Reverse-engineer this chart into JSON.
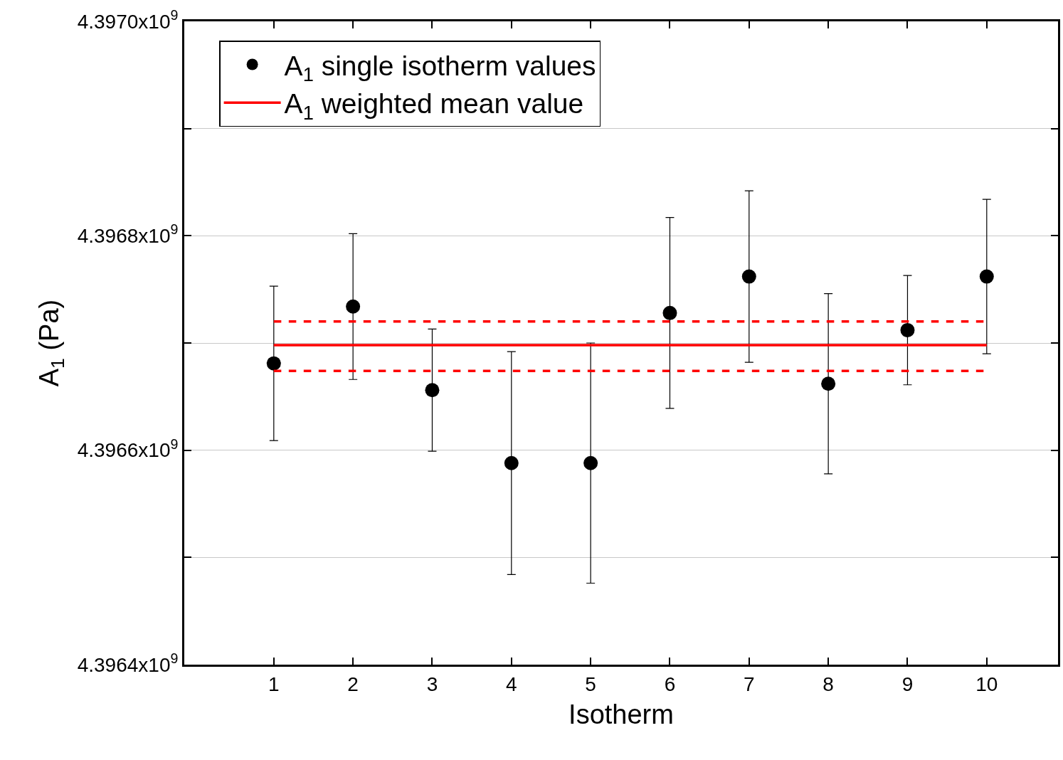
{
  "chart_data": {
    "type": "scatter",
    "xlabel": "Isotherm",
    "ylabel": "A$_{1}$ (Pa)",
    "x": [
      1,
      2,
      3,
      4,
      5,
      6,
      7,
      8,
      9,
      10
    ],
    "series": [
      {
        "name": "A$_{1}$ single isotherm values",
        "marker": "circle",
        "color": "#000000",
        "values": [
          4396681000,
          4396734000,
          4396656000,
          4396588000,
          4396588000,
          4396728000,
          4396762000,
          4396662000,
          4396712000,
          4396762000
        ],
        "errors": [
          72000,
          68000,
          57000,
          104000,
          112000,
          89000,
          80000,
          84000,
          51000,
          72000
        ]
      },
      {
        "name": "A$_{1}$ weighted mean value",
        "type": "line",
        "line_style": "solid",
        "color": "#ff0000",
        "values": [
          4396698000,
          4396698000,
          4396698000,
          4396698000,
          4396698000,
          4396698000,
          4396698000,
          4396698000,
          4396698000,
          4396698000
        ]
      },
      {
        "type": "line",
        "line_style": "dashed",
        "color": "#ff0000",
        "values": [
          4396720000,
          4396720000,
          4396720000,
          4396720000,
          4396720000,
          4396720000,
          4396720000,
          4396720000,
          4396720000,
          4396720000
        ]
      },
      {
        "type": "line",
        "line_style": "dashed",
        "color": "#ff0000",
        "values": [
          4396674000,
          4396674000,
          4396674000,
          4396674000,
          4396674000,
          4396674000,
          4396674000,
          4396674000,
          4396674000,
          4396674000
        ]
      }
    ],
    "xlim": [
      -0.13,
      10.9
    ],
    "xticks": [
      1,
      2,
      3,
      4,
      5,
      6,
      7,
      8,
      9,
      10
    ],
    "ylim": [
      4396400000,
      4397000000
    ],
    "yticks": [
      {
        "value": 4396400000,
        "label": "4.3964x10$^{9}$"
      },
      {
        "value": 4396500000,
        "label": null
      },
      {
        "value": 4396600000,
        "label": "4.3966x10$^{9}$"
      },
      {
        "value": 4396700000,
        "label": null
      },
      {
        "value": 4396800000,
        "label": "4.3968x10$^{9}$"
      },
      {
        "value": 4396900000,
        "label": null
      },
      {
        "value": 4397000000,
        "label": "4.3970x10$^{9}$"
      }
    ],
    "grid": "y",
    "legend": "top left"
  }
}
